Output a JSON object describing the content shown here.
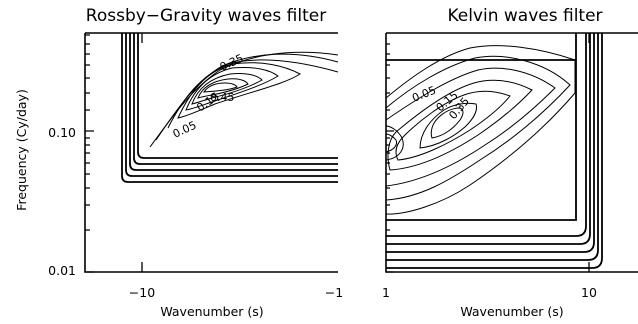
{
  "chart_data": [
    {
      "type": "contour",
      "title": "Rossby−Gravity waves filter",
      "xlabel": "Wavenumber (s)",
      "ylabel": "Frequency (Cy/day)",
      "xlim": [
        -14,
        -1
      ],
      "ylim": [
        0.0095,
        0.42
      ],
      "yscale": "log",
      "x_ticks": [
        {
          "value": -10,
          "label": "−10"
        },
        {
          "value": -1,
          "label": "−1"
        }
      ],
      "y_ticks": [
        {
          "value": 0.01,
          "label": "0.01"
        },
        {
          "value": 0.1,
          "label": "0.10"
        }
      ],
      "contour_labels": [
        "0.45",
        "0.35",
        "0.15",
        "0.05"
      ],
      "filter_box": {
        "wavenumber": [
          -10,
          -1
        ],
        "frequency": [
          0.05,
          0.42
        ]
      }
    },
    {
      "type": "contour",
      "title": "Kelvin waves filter",
      "xlabel": "Wavenumber (s)",
      "ylabel": "",
      "xlim": [
        1,
        14
      ],
      "ylim": [
        0.0095,
        0.42
      ],
      "yscale": "log",
      "x_ticks": [
        {
          "value": 1,
          "label": "1"
        },
        {
          "value": 10,
          "label": "10"
        }
      ],
      "y_ticks": [],
      "contour_labels": [
        "0.05",
        "0.15",
        "0.35"
      ],
      "filter_box": {
        "wavenumber": [
          1,
          10
        ],
        "frequency": [
          0.025,
          0.3
        ]
      }
    }
  ]
}
